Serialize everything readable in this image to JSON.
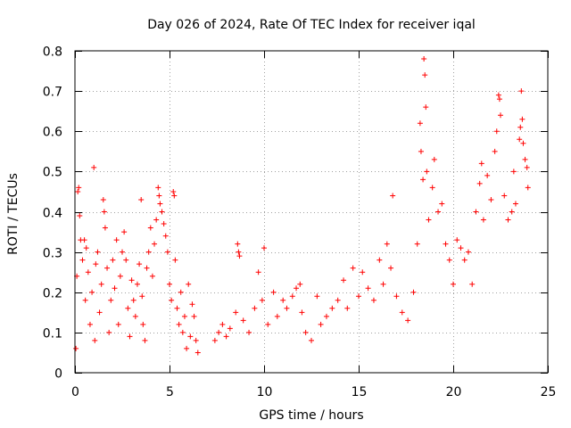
{
  "chart_data": {
    "type": "scatter",
    "title": "Day 026 of 2024, Rate Of TEC Index for receiver iqal",
    "xlabel": "GPS time / hours",
    "ylabel": "ROTI / TECUs",
    "xlim": [
      0,
      25
    ],
    "ylim": [
      0,
      0.8
    ],
    "x_ticks": [
      0,
      5,
      10,
      15,
      20,
      25
    ],
    "y_ticks": [
      0,
      0.1,
      0.2,
      0.3,
      0.4,
      0.5,
      0.6,
      0.7,
      0.8
    ],
    "x_tick_labels": [
      "0",
      "5",
      "10",
      "15",
      "20",
      "25"
    ],
    "y_tick_labels": [
      "0",
      "0.1",
      "0.2",
      "0.3",
      "0.4",
      "0.5",
      "0.6",
      "0.7",
      "0.8"
    ],
    "grid": true,
    "marker": "+",
    "color": "#ff0000",
    "series": [
      {
        "name": "ROTI",
        "points": [
          [
            0.05,
            0.06
          ],
          [
            0.1,
            0.24
          ],
          [
            0.15,
            0.45
          ],
          [
            0.2,
            0.46
          ],
          [
            0.25,
            0.39
          ],
          [
            0.3,
            0.33
          ],
          [
            0.4,
            0.28
          ],
          [
            0.5,
            0.33
          ],
          [
            0.55,
            0.18
          ],
          [
            0.6,
            0.31
          ],
          [
            0.7,
            0.25
          ],
          [
            0.8,
            0.12
          ],
          [
            0.9,
            0.2
          ],
          [
            1.0,
            0.51
          ],
          [
            1.05,
            0.08
          ],
          [
            1.1,
            0.27
          ],
          [
            1.2,
            0.3
          ],
          [
            1.3,
            0.15
          ],
          [
            1.4,
            0.22
          ],
          [
            1.5,
            0.43
          ],
          [
            1.55,
            0.4
          ],
          [
            1.6,
            0.36
          ],
          [
            1.7,
            0.26
          ],
          [
            1.8,
            0.1
          ],
          [
            1.9,
            0.18
          ],
          [
            2.0,
            0.28
          ],
          [
            2.1,
            0.21
          ],
          [
            2.2,
            0.33
          ],
          [
            2.3,
            0.12
          ],
          [
            2.4,
            0.24
          ],
          [
            2.5,
            0.3
          ],
          [
            2.6,
            0.35
          ],
          [
            2.7,
            0.28
          ],
          [
            2.8,
            0.16
          ],
          [
            2.9,
            0.09
          ],
          [
            3.0,
            0.23
          ],
          [
            3.1,
            0.18
          ],
          [
            3.2,
            0.14
          ],
          [
            3.3,
            0.22
          ],
          [
            3.4,
            0.27
          ],
          [
            3.5,
            0.43
          ],
          [
            3.55,
            0.19
          ],
          [
            3.6,
            0.12
          ],
          [
            3.7,
            0.08
          ],
          [
            3.8,
            0.26
          ],
          [
            3.9,
            0.3
          ],
          [
            4.0,
            0.36
          ],
          [
            4.1,
            0.24
          ],
          [
            4.2,
            0.32
          ],
          [
            4.3,
            0.38
          ],
          [
            4.4,
            0.46
          ],
          [
            4.45,
            0.44
          ],
          [
            4.5,
            0.42
          ],
          [
            4.6,
            0.4
          ],
          [
            4.7,
            0.37
          ],
          [
            4.8,
            0.34
          ],
          [
            4.9,
            0.3
          ],
          [
            5.0,
            0.22
          ],
          [
            5.1,
            0.18
          ],
          [
            5.2,
            0.45
          ],
          [
            5.25,
            0.44
          ],
          [
            5.3,
            0.28
          ],
          [
            5.4,
            0.16
          ],
          [
            5.5,
            0.12
          ],
          [
            5.6,
            0.2
          ],
          [
            5.7,
            0.1
          ],
          [
            5.8,
            0.14
          ],
          [
            5.9,
            0.06
          ],
          [
            6.0,
            0.22
          ],
          [
            6.1,
            0.09
          ],
          [
            6.2,
            0.17
          ],
          [
            6.3,
            0.14
          ],
          [
            6.4,
            0.08
          ],
          [
            6.5,
            0.05
          ],
          [
            7.4,
            0.08
          ],
          [
            7.6,
            0.1
          ],
          [
            7.8,
            0.12
          ],
          [
            8.0,
            0.09
          ],
          [
            8.2,
            0.11
          ],
          [
            8.5,
            0.15
          ],
          [
            8.6,
            0.32
          ],
          [
            8.65,
            0.3
          ],
          [
            8.7,
            0.29
          ],
          [
            8.9,
            0.13
          ],
          [
            9.2,
            0.1
          ],
          [
            9.5,
            0.16
          ],
          [
            9.7,
            0.25
          ],
          [
            9.9,
            0.18
          ],
          [
            10.0,
            0.31
          ],
          [
            10.2,
            0.12
          ],
          [
            10.5,
            0.2
          ],
          [
            10.7,
            0.14
          ],
          [
            11.0,
            0.18
          ],
          [
            11.2,
            0.16
          ],
          [
            11.5,
            0.19
          ],
          [
            11.7,
            0.21
          ],
          [
            11.9,
            0.22
          ],
          [
            12.0,
            0.15
          ],
          [
            12.2,
            0.1
          ],
          [
            12.5,
            0.08
          ],
          [
            12.8,
            0.19
          ],
          [
            13.0,
            0.12
          ],
          [
            13.3,
            0.14
          ],
          [
            13.6,
            0.16
          ],
          [
            13.9,
            0.18
          ],
          [
            14.2,
            0.23
          ],
          [
            14.4,
            0.16
          ],
          [
            14.7,
            0.26
          ],
          [
            15.0,
            0.19
          ],
          [
            15.2,
            0.25
          ],
          [
            15.5,
            0.21
          ],
          [
            15.8,
            0.18
          ],
          [
            16.1,
            0.28
          ],
          [
            16.3,
            0.22
          ],
          [
            16.5,
            0.32
          ],
          [
            16.7,
            0.26
          ],
          [
            16.8,
            0.44
          ],
          [
            17.0,
            0.19
          ],
          [
            17.3,
            0.15
          ],
          [
            17.6,
            0.13
          ],
          [
            17.9,
            0.2
          ],
          [
            18.1,
            0.32
          ],
          [
            18.25,
            0.62
          ],
          [
            18.3,
            0.55
          ],
          [
            18.4,
            0.48
          ],
          [
            18.45,
            0.78
          ],
          [
            18.5,
            0.74
          ],
          [
            18.55,
            0.66
          ],
          [
            18.6,
            0.5
          ],
          [
            18.7,
            0.38
          ],
          [
            18.9,
            0.46
          ],
          [
            19.0,
            0.53
          ],
          [
            19.2,
            0.4
          ],
          [
            19.4,
            0.42
          ],
          [
            19.6,
            0.32
          ],
          [
            19.8,
            0.28
          ],
          [
            20.0,
            0.22
          ],
          [
            20.2,
            0.33
          ],
          [
            20.4,
            0.31
          ],
          [
            20.6,
            0.28
          ],
          [
            20.8,
            0.3
          ],
          [
            21.0,
            0.22
          ],
          [
            21.2,
            0.4
          ],
          [
            21.4,
            0.47
          ],
          [
            21.5,
            0.52
          ],
          [
            21.6,
            0.38
          ],
          [
            21.8,
            0.49
          ],
          [
            22.0,
            0.43
          ],
          [
            22.2,
            0.55
          ],
          [
            22.3,
            0.6
          ],
          [
            22.4,
            0.69
          ],
          [
            22.45,
            0.68
          ],
          [
            22.5,
            0.64
          ],
          [
            22.7,
            0.44
          ],
          [
            22.9,
            0.38
          ],
          [
            23.1,
            0.4
          ],
          [
            23.2,
            0.5
          ],
          [
            23.3,
            0.42
          ],
          [
            23.5,
            0.58
          ],
          [
            23.55,
            0.61
          ],
          [
            23.6,
            0.7
          ],
          [
            23.65,
            0.63
          ],
          [
            23.7,
            0.57
          ],
          [
            23.8,
            0.53
          ],
          [
            23.9,
            0.51
          ],
          [
            23.95,
            0.46
          ]
        ]
      }
    ]
  }
}
